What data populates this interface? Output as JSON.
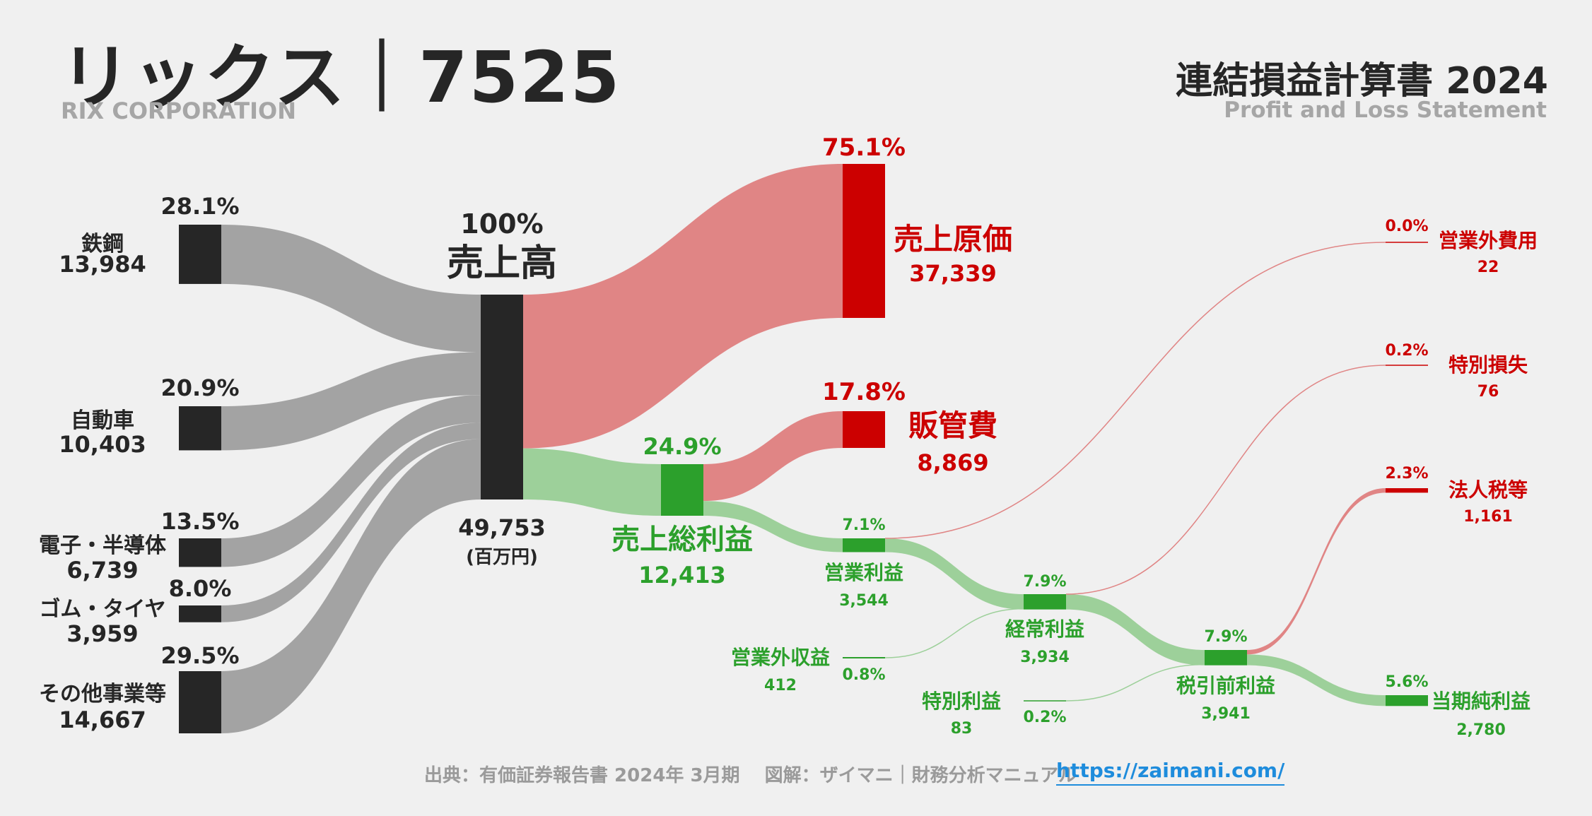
{
  "header": {
    "company_title": "リックス｜7525",
    "company_en": "RIX CORPORATION",
    "statement_title": "連結損益計算書 2024",
    "statement_en": "Profit and Loss Statement"
  },
  "footer": {
    "source": "出典：有価証券報告書 2024年 3月期　 図解：ザイマニ｜財務分析マニュアル",
    "url": "https://zaimani.com/"
  },
  "colors": {
    "segment": "#262626",
    "segment_flow": "#a3a3a3",
    "cost": "#cc0000",
    "cost_flow": "#e08585",
    "profit": "#2ca02c",
    "profit_flow": "#9dd09a",
    "text": "#262626"
  },
  "chart_data": {
    "type": "sankey",
    "unit": "(百万円)",
    "segments": [
      {
        "name": "鉄鋼",
        "value": "13,984",
        "pct": "28.1%"
      },
      {
        "name": "自動車",
        "value": "10,403",
        "pct": "20.9%"
      },
      {
        "name": "電子・半導体",
        "value": "6,739",
        "pct": "13.5%"
      },
      {
        "name": "ゴム・タイヤ",
        "value": "3,959",
        "pct": "8.0%"
      },
      {
        "name": "その他事業等",
        "value": "14,667",
        "pct": "29.5%"
      }
    ],
    "revenue": {
      "name": "売上高",
      "value": "49,753",
      "pct": "100%"
    },
    "cost_of_sales": {
      "name": "売上原価",
      "value": "37,339",
      "pct": "75.1%"
    },
    "sga": {
      "name": "販管費",
      "value": "8,869",
      "pct": "17.8%"
    },
    "gross_profit": {
      "name": "売上総利益",
      "value": "12,413",
      "pct": "24.9%"
    },
    "operating_profit": {
      "name": "営業利益",
      "value": "3,544",
      "pct": "7.1%"
    },
    "non_operating_income": {
      "name": "営業外収益",
      "value": "412",
      "pct": "0.8%"
    },
    "non_operating_expenses": {
      "name": "営業外費用",
      "value": "22",
      "pct": "0.0%"
    },
    "ordinary_profit": {
      "name": "経常利益",
      "value": "3,934",
      "pct": "7.9%"
    },
    "extraordinary_income": {
      "name": "特別利益",
      "value": "83",
      "pct": "0.2%"
    },
    "extraordinary_loss": {
      "name": "特別損失",
      "value": "76",
      "pct": "0.2%"
    },
    "pretax_profit": {
      "name": "税引前利益",
      "value": "3,941",
      "pct": "7.9%"
    },
    "income_taxes": {
      "name": "法人税等",
      "value": "1,161",
      "pct": "2.3%"
    },
    "net_income": {
      "name": "当期純利益",
      "value": "2,780",
      "pct": "5.6%"
    }
  }
}
